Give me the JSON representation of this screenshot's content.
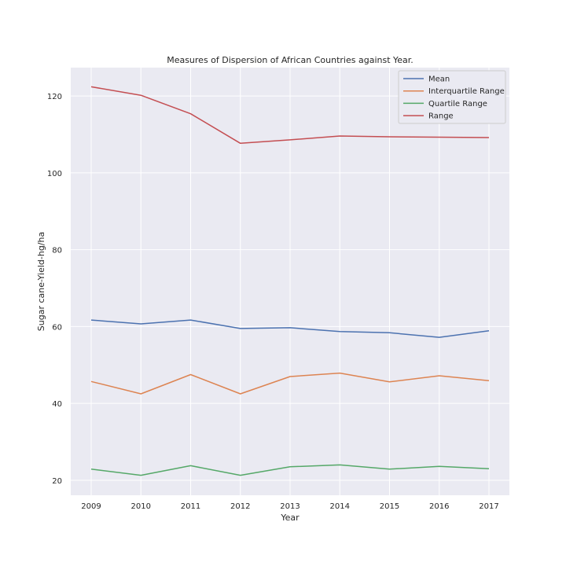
{
  "chart_data": {
    "type": "line",
    "title": "Measures of Dispersion of African Countries against Year.",
    "xlabel": "Year",
    "ylabel": "Sugar cane-Yield-hg/ha",
    "x": [
      2009,
      2010,
      2011,
      2012,
      2013,
      2014,
      2015,
      2016,
      2017
    ],
    "xticks": [
      "2009",
      "2010",
      "2011",
      "2012",
      "2013",
      "2014",
      "2015",
      "2016",
      "2017"
    ],
    "yticks": [
      "20",
      "40",
      "60",
      "80",
      "100",
      "120"
    ],
    "ylim": [
      16.1,
      127.4
    ],
    "grid": true,
    "legend_position": "top-right",
    "series": [
      {
        "name": "Mean",
        "color": "#4c72b0",
        "values": [
          61.7,
          60.7,
          61.7,
          59.5,
          59.7,
          58.7,
          58.4,
          57.2,
          58.9
        ]
      },
      {
        "name": "Interquartile Range",
        "color": "#dd8452",
        "values": [
          45.7,
          42.5,
          47.5,
          42.5,
          47.0,
          47.9,
          45.6,
          47.2,
          45.9
        ]
      },
      {
        "name": "Quartile Range",
        "color": "#55a868",
        "values": [
          22.9,
          21.3,
          23.8,
          21.3,
          23.5,
          24.0,
          22.9,
          23.6,
          23.0
        ]
      },
      {
        "name": "Range",
        "color": "#c44e52",
        "values": [
          122.4,
          120.2,
          115.4,
          107.7,
          108.6,
          109.6,
          109.4,
          109.3,
          109.2
        ]
      }
    ]
  }
}
